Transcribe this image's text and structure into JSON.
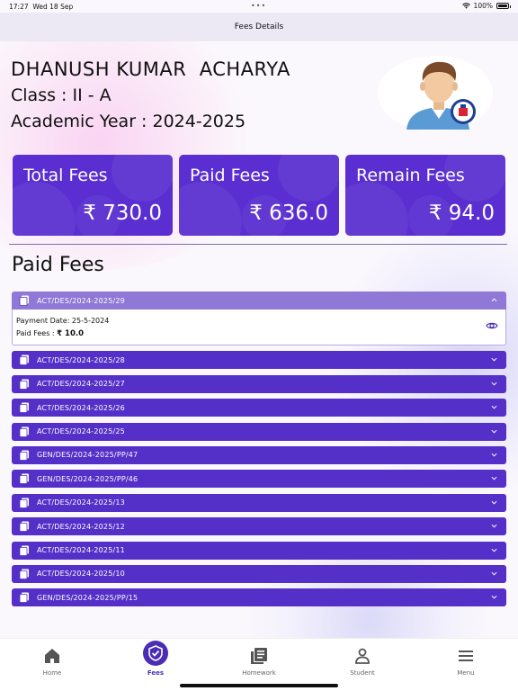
{
  "status_bar": {
    "time": "17:27",
    "date": "Wed 18 Sep",
    "battery": "100%"
  },
  "nav": {
    "title": "Fees Details"
  },
  "student": {
    "name": "DHANUSH KUMAR  ACHARYA",
    "class_line": "Class : II - A",
    "year_line": "Academic Year : 2024-2025"
  },
  "summary": [
    {
      "title": "Total Fees",
      "value": "₹ 730.0"
    },
    {
      "title": "Paid Fees",
      "value": "₹ 636.0"
    },
    {
      "title": "Remain Fees",
      "value": "₹ 94.0"
    }
  ],
  "section": {
    "title": "Paid Fees"
  },
  "receipts": [
    {
      "label": "ACT/DES/2024-2025/29",
      "expanded": true
    },
    {
      "label": "ACT/DES/2024-2025/28"
    },
    {
      "label": "ACT/DES/2024-2025/27"
    },
    {
      "label": "ACT/DES/2024-2025/26"
    },
    {
      "label": "ACT/DES/2024-2025/25"
    },
    {
      "label": "GEN/DES/2024-2025/PP/47"
    },
    {
      "label": "GEN/DES/2024-2025/PP/46"
    },
    {
      "label": "ACT/DES/2024-2025/13"
    },
    {
      "label": "ACT/DES/2024-2025/12"
    },
    {
      "label": "ACT/DES/2024-2025/11"
    },
    {
      "label": "ACT/DES/2024-2025/10"
    },
    {
      "label": "GEN/DES/2024-2025/PP/15"
    }
  ],
  "expanded_detail": {
    "payment_date": "Payment Date: 25-5-2024",
    "paid_label": "Paid Fees : ",
    "paid_value": "₹ 10.0"
  },
  "tabs": {
    "home": "Home",
    "fees": "Fees",
    "homework": "Homework",
    "student": "Student",
    "menu": "Menu"
  },
  "colors": {
    "primary": "#5530c8",
    "header_open": "#8f78d6",
    "active_tab": "#4b2cb5"
  }
}
